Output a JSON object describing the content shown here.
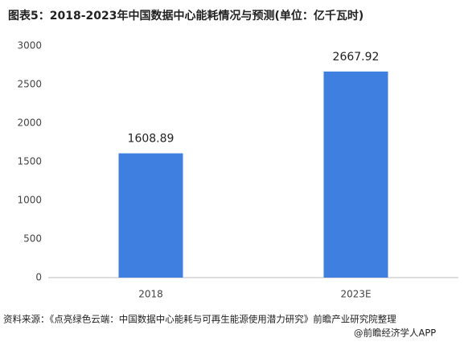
{
  "chart_data": {
    "type": "bar",
    "title": "图表5：2018-2023年中国数据中心能耗情况与预测(单位：亿千瓦时)",
    "categories": [
      "2018",
      "2023E"
    ],
    "values": [
      1608.89,
      2667.92
    ],
    "color": "#3f7fdf",
    "ylim": [
      0,
      3000
    ],
    "yticks": [
      0,
      500,
      1000,
      1500,
      2000,
      2500,
      3000
    ],
    "grid": false,
    "source": "资料来源：《点亮绿色云端：中国数据中心能耗与可再生能源使用潜力研究》前瞻产业研究院整理",
    "watermark": "@前瞻经济学人APP"
  }
}
